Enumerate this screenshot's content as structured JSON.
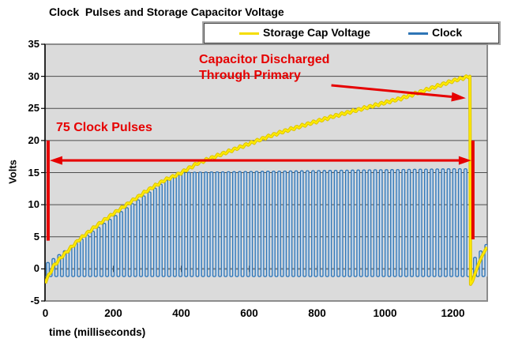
{
  "title": "Clock  Pulses and Storage Capacitor Voltage",
  "legend": {
    "entries": [
      {
        "label": "Storage Cap Voltage",
        "color": "#F5DE00"
      },
      {
        "label": "Clock",
        "color": "#2E75B6"
      }
    ]
  },
  "axes": {
    "y_label": "Volts",
    "x_label": "time (milliseconds)",
    "y_ticks": [
      35,
      30,
      25,
      20,
      15,
      10,
      5,
      0,
      -5
    ],
    "x_ticks": [
      0,
      200,
      400,
      600,
      800,
      1000,
      1200
    ]
  },
  "annotations": {
    "color": "#E60000",
    "discharge_line1": "Capacitor Discharged",
    "discharge_line2": "Through Primary",
    "pulses_label": "75 Clock Pulses"
  },
  "colors": {
    "plot_background": "#DBDBDB",
    "gridline": "#4D4D4D",
    "zero_axis": "#808080",
    "plot_border": "#8C8C8C",
    "annotation_red": "#E60000",
    "cap_yellow": "#FFEB00",
    "cap_yellow_edge": "#DCC400",
    "clock_blue": "#2E75B6",
    "clock_fill": "#C3D6EA"
  },
  "chart_data": {
    "type": "line",
    "title": "Clock  Pulses and Storage Capacitor Voltage",
    "xlabel": "time (milliseconds)",
    "ylabel": "Volts",
    "xlim": [
      0,
      1300
    ],
    "ylim": [
      -5,
      35
    ],
    "x_tick_step": 200,
    "y_tick_step": 5,
    "grid": "horizontal-only",
    "legend_position": "top-right",
    "series": [
      {
        "name": "Storage Cap Voltage",
        "color": "#FFEB00",
        "edge_color": "#DCC400",
        "charge_points": [
          [
            0,
            -2
          ],
          [
            25,
            0.5
          ],
          [
            50,
            2.0
          ],
          [
            100,
            4.6
          ],
          [
            150,
            6.7
          ],
          [
            200,
            8.6
          ],
          [
            250,
            10.4
          ],
          [
            300,
            12.2
          ],
          [
            350,
            13.8
          ],
          [
            390,
            14.7
          ],
          [
            450,
            16.5
          ],
          [
            500,
            17.5
          ],
          [
            550,
            18.5
          ],
          [
            600,
            19.5
          ],
          [
            650,
            20.5
          ],
          [
            700,
            21.4
          ],
          [
            750,
            22.2
          ],
          [
            800,
            23.0
          ],
          [
            850,
            23.8
          ],
          [
            900,
            24.5
          ],
          [
            950,
            25.2
          ],
          [
            1000,
            25.9
          ],
          [
            1050,
            26.6
          ],
          [
            1100,
            27.5
          ],
          [
            1150,
            28.4
          ],
          [
            1200,
            29.3
          ],
          [
            1248,
            30.0
          ]
        ],
        "peak_v": 30,
        "discharge_time_ms": 1250,
        "post_discharge_points": [
          [
            1250,
            30
          ],
          [
            1252,
            -2.4
          ],
          [
            1258,
            -1.9
          ],
          [
            1266,
            -0.6
          ],
          [
            1275,
            0.7
          ],
          [
            1284,
            1.8
          ],
          [
            1293,
            2.7
          ],
          [
            1300,
            3.4
          ]
        ],
        "ripple": {
          "amplitude_v": 0.45,
          "period_ms": 16.62
        }
      },
      {
        "name": "Clock",
        "color": "#2E75B6",
        "fill": "#C3D6EA",
        "pulse_count": 75,
        "period_ms": 16.62,
        "first_start_ms": 3,
        "high_ms": 8.3,
        "low_v": -1.2,
        "ramp": {
          "first_peak_v": 1.0,
          "peak_step_v": 0.61,
          "ramp_pulses": 23
        },
        "drift": {
          "rate_v_per_ms": 0.0007,
          "max_peak_v": 15.6
        },
        "restart": {
          "start_times_ms": [
            1261,
            1277.6,
            1294.2
          ],
          "peaks_v": [
            1.8,
            2.8,
            3.8
          ]
        }
      }
    ],
    "red_markers": {
      "left_vline": {
        "t_ms": 8,
        "v_top": 20.0,
        "v_bottom": 4.4
      },
      "right_vline": {
        "t_ms": 1259,
        "v_top": 20.0,
        "v_bottom": 4.6
      },
      "span_arrow_v": 16.9,
      "diag_arrow": {
        "from_t": 842,
        "from_v": 28.6,
        "to_t": 1238,
        "to_v": 26.6
      }
    }
  }
}
